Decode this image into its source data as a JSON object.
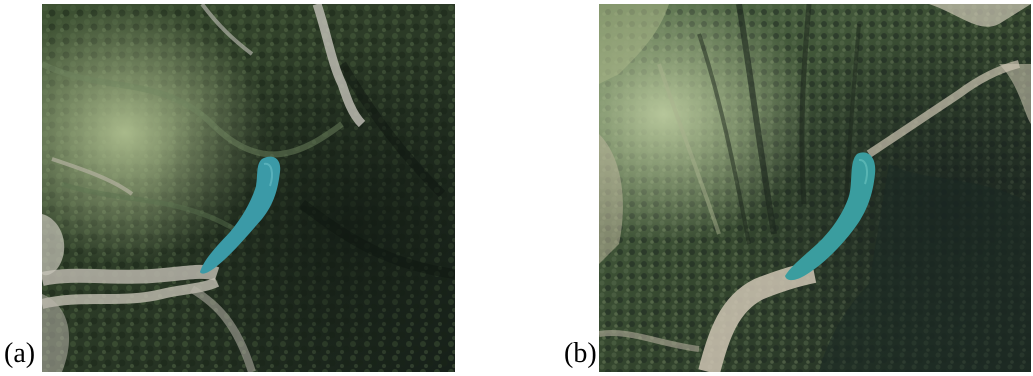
{
  "panels": [
    {
      "label": "(a)",
      "subject": "aerial-image-forested-valley-reservoir"
    },
    {
      "label": "(b)",
      "subject": "aerial-image-forested-valley-reservoir"
    }
  ],
  "palette": {
    "forest_dark": "#1d2a1c",
    "forest_mid": "#33452e",
    "forest_light": "#5f7a4e",
    "meadow": "#9fb07e",
    "riverbed": "#b8b5aa",
    "water": "#3b9aa7",
    "shadow": "#0f1712"
  }
}
